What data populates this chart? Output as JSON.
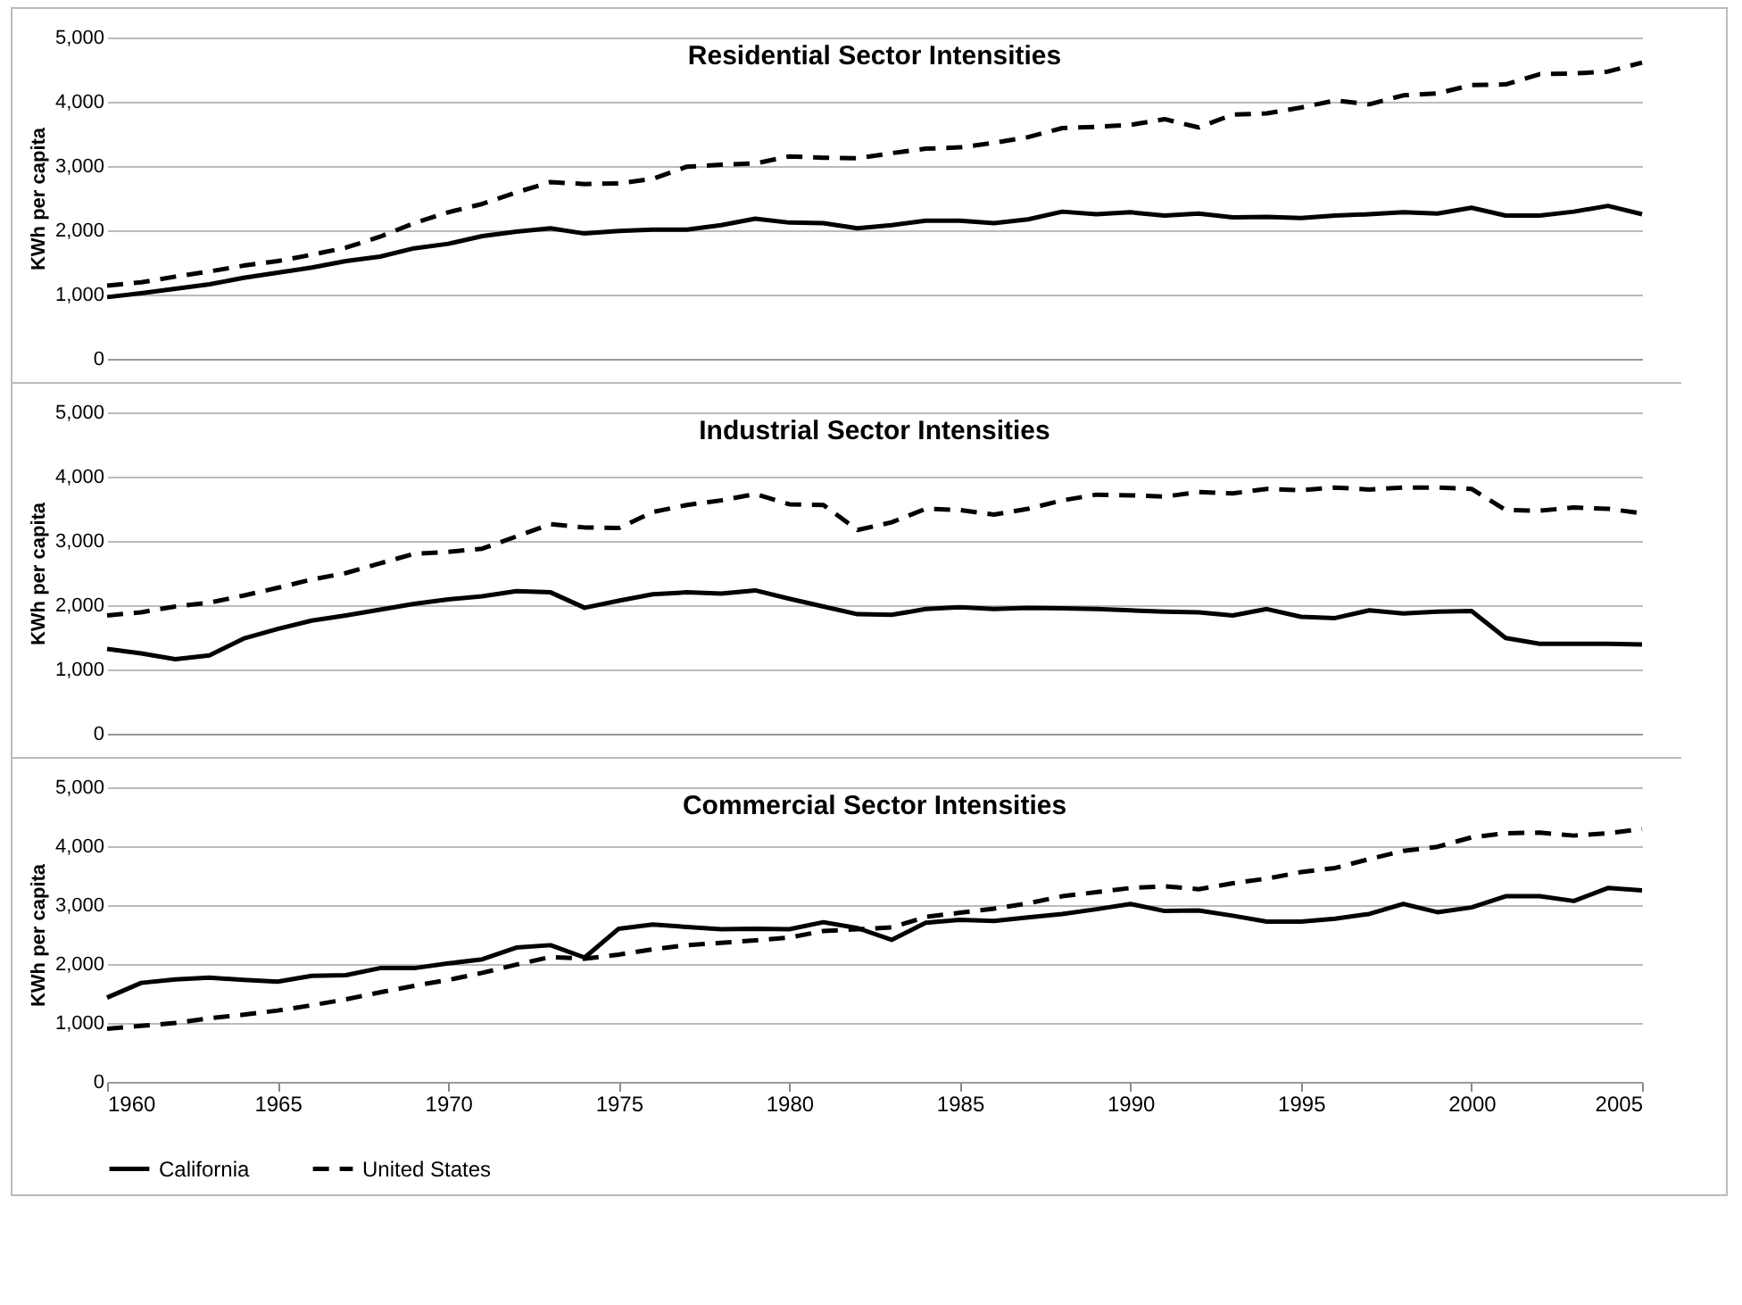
{
  "chart_data": [
    {
      "type": "line",
      "title": "Residential Sector Intensities",
      "ylabel": "KWh per capita",
      "x": [
        1960,
        1961,
        1962,
        1963,
        1964,
        1965,
        1966,
        1967,
        1968,
        1969,
        1970,
        1971,
        1972,
        1973,
        1974,
        1975,
        1976,
        1977,
        1978,
        1979,
        1980,
        1981,
        1982,
        1983,
        1984,
        1985,
        1986,
        1987,
        1988,
        1989,
        1990,
        1991,
        1992,
        1993,
        1994,
        1995,
        1996,
        1997,
        1998,
        1999,
        2000,
        2001,
        2002,
        2003,
        2004,
        2005
      ],
      "xlim": [
        1960,
        2005
      ],
      "xticks": [
        1960,
        1965,
        1970,
        1975,
        1980,
        1985,
        1990,
        1995,
        2000,
        2005
      ],
      "ylim": [
        0,
        5000
      ],
      "yticks": [
        {
          "value": 0,
          "label": "0"
        },
        {
          "value": 1000,
          "label": "1,000"
        },
        {
          "value": 2000,
          "label": "2,000"
        },
        {
          "value": 3000,
          "label": "3,000"
        },
        {
          "value": 4000,
          "label": "4,000"
        },
        {
          "value": 5000,
          "label": "5,000"
        }
      ],
      "grid": "y",
      "tick_labels": "y",
      "legend": false,
      "series": [
        {
          "color": "#000000",
          "line_style": "solid",
          "values": [
            960,
            1020,
            1090,
            1160,
            1260,
            1340,
            1420,
            1520,
            1590,
            1720,
            1790,
            1910,
            1980,
            2030,
            1950,
            1990,
            2010,
            2010,
            2080,
            2180,
            2120,
            2110,
            2030,
            2080,
            2150,
            2150,
            2110,
            2170,
            2290,
            2250,
            2280,
            2230,
            2260,
            2200,
            2210,
            2190,
            2230,
            2250,
            2280,
            2260,
            2350,
            2230,
            2230,
            2290,
            2380,
            2250
          ]
        },
        {
          "color": "#000000",
          "line_style": "dashed",
          "values": [
            1140,
            1190,
            1280,
            1360,
            1450,
            1520,
            1620,
            1730,
            1900,
            2110,
            2280,
            2410,
            2590,
            2750,
            2720,
            2730,
            2800,
            2990,
            3020,
            3040,
            3150,
            3130,
            3120,
            3200,
            3270,
            3290,
            3360,
            3450,
            3590,
            3610,
            3640,
            3730,
            3600,
            3800,
            3820,
            3910,
            4020,
            3960,
            4100,
            4130,
            4260,
            4270,
            4430,
            4440,
            4470,
            4610
          ]
        }
      ]
    },
    {
      "type": "line",
      "title": "Industrial Sector Intensities",
      "ylabel": "KWh per capita",
      "x": [
        1960,
        1961,
        1962,
        1963,
        1964,
        1965,
        1966,
        1967,
        1968,
        1969,
        1970,
        1971,
        1972,
        1973,
        1974,
        1975,
        1976,
        1977,
        1978,
        1979,
        1980,
        1981,
        1982,
        1983,
        1984,
        1985,
        1986,
        1987,
        1988,
        1989,
        1990,
        1991,
        1992,
        1993,
        1994,
        1995,
        1996,
        1997,
        1998,
        1999,
        2000,
        2001,
        2002,
        2003,
        2004,
        2005
      ],
      "xlim": [
        1960,
        2005
      ],
      "xticks": [
        1960,
        1965,
        1970,
        1975,
        1980,
        1985,
        1990,
        1995,
        2000,
        2005
      ],
      "ylim": [
        0,
        5000
      ],
      "yticks": [
        {
          "value": 0,
          "label": "0"
        },
        {
          "value": 1000,
          "label": "1,000"
        },
        {
          "value": 2000,
          "label": "2,000"
        },
        {
          "value": 3000,
          "label": "3,000"
        },
        {
          "value": 4000,
          "label": "4,000"
        },
        {
          "value": 5000,
          "label": "5,000"
        }
      ],
      "grid": "y",
      "tick_labels": "y",
      "legend": false,
      "series": [
        {
          "color": "#000000",
          "line_style": "solid",
          "values": [
            1320,
            1250,
            1160,
            1220,
            1480,
            1630,
            1760,
            1840,
            1930,
            2020,
            2090,
            2140,
            2220,
            2200,
            1960,
            2070,
            2170,
            2200,
            2180,
            2230,
            2100,
            1980,
            1860,
            1850,
            1940,
            1970,
            1940,
            1960,
            1950,
            1940,
            1920,
            1900,
            1890,
            1840,
            1940,
            1820,
            1800,
            1920,
            1870,
            1900,
            1910,
            1490,
            1400,
            1400,
            1400,
            1390
          ]
        },
        {
          "color": "#000000",
          "line_style": "dashed",
          "values": [
            1840,
            1890,
            1980,
            2040,
            2150,
            2270,
            2400,
            2500,
            2650,
            2800,
            2830,
            2880,
            3070,
            3260,
            3210,
            3200,
            3450,
            3560,
            3630,
            3730,
            3570,
            3560,
            3170,
            3290,
            3500,
            3480,
            3410,
            3500,
            3630,
            3720,
            3710,
            3690,
            3760,
            3740,
            3810,
            3790,
            3830,
            3800,
            3830,
            3830,
            3810,
            3480,
            3470,
            3520,
            3500,
            3430
          ]
        }
      ]
    },
    {
      "type": "line",
      "title": "Commercial Sector Intensities",
      "ylabel": "KWh per capita",
      "x": [
        1960,
        1961,
        1962,
        1963,
        1964,
        1965,
        1966,
        1967,
        1968,
        1969,
        1970,
        1971,
        1972,
        1973,
        1974,
        1975,
        1976,
        1977,
        1978,
        1979,
        1980,
        1981,
        1982,
        1983,
        1984,
        1985,
        1986,
        1987,
        1988,
        1989,
        1990,
        1991,
        1992,
        1993,
        1994,
        1995,
        1996,
        1997,
        1998,
        1999,
        2000,
        2001,
        2002,
        2003,
        2004,
        2005
      ],
      "xlim": [
        1960,
        2005
      ],
      "xticks": [
        1960,
        1965,
        1970,
        1975,
        1980,
        1985,
        1990,
        1995,
        2000,
        2005
      ],
      "ylim": [
        0,
        5000
      ],
      "yticks": [
        {
          "value": 0,
          "label": "0"
        },
        {
          "value": 1000,
          "label": "1,000"
        },
        {
          "value": 2000,
          "label": "2,000"
        },
        {
          "value": 3000,
          "label": "3,000"
        },
        {
          "value": 4000,
          "label": "4,000"
        },
        {
          "value": 5000,
          "label": "5,000"
        }
      ],
      "grid": "y",
      "legend": "bottom",
      "series": [
        {
          "name": "California",
          "color": "#000000",
          "line_style": "solid",
          "values": [
            1430,
            1680,
            1740,
            1770,
            1730,
            1700,
            1800,
            1810,
            1930,
            1930,
            2010,
            2080,
            2280,
            2320,
            2110,
            2600,
            2670,
            2630,
            2590,
            2600,
            2590,
            2710,
            2610,
            2410,
            2700,
            2750,
            2730,
            2790,
            2850,
            2930,
            3020,
            2900,
            2910,
            2820,
            2720,
            2720,
            2770,
            2850,
            3020,
            2880,
            2960,
            3150,
            3150,
            3070,
            3290,
            3250
          ]
        },
        {
          "name": "United States",
          "color": "#000000",
          "line_style": "dashed",
          "values": [
            900,
            950,
            1000,
            1080,
            1140,
            1210,
            1300,
            1400,
            1520,
            1630,
            1730,
            1850,
            1990,
            2120,
            2090,
            2160,
            2250,
            2320,
            2360,
            2400,
            2450,
            2560,
            2590,
            2620,
            2800,
            2870,
            2940,
            3030,
            3150,
            3220,
            3290,
            3320,
            3270,
            3370,
            3450,
            3560,
            3630,
            3780,
            3920,
            3990,
            4150,
            4220,
            4230,
            4180,
            4220,
            4290
          ]
        }
      ]
    }
  ]
}
